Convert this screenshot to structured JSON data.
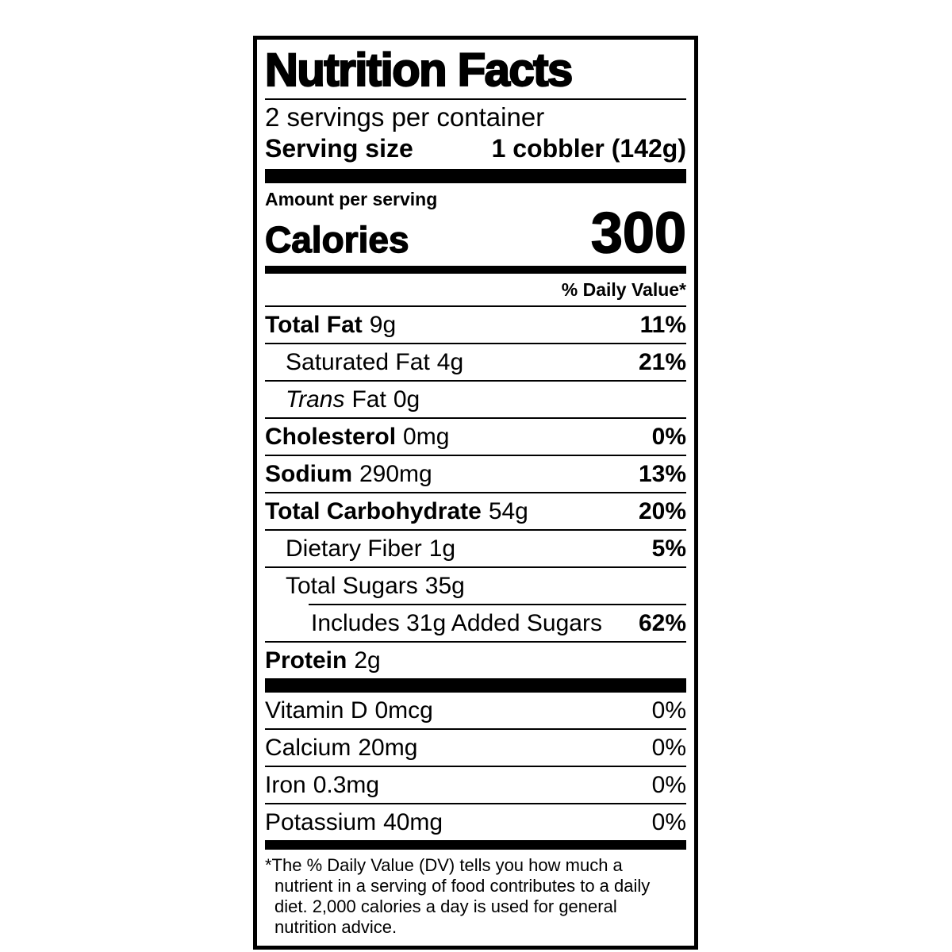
{
  "label": {
    "title": "Nutrition Facts",
    "servings_per_container": "2 servings per container",
    "serving_size": {
      "label": "Serving size",
      "value": "1 cobbler (142g)"
    },
    "amount_per_serving": "Amount per serving",
    "calories": {
      "label": "Calories",
      "value": "300"
    },
    "daily_value_header": "% Daily Value*",
    "nutrients": [
      {
        "name": "Total Fat",
        "amount": "9g",
        "dv": "11%"
      },
      {
        "name": "Saturated Fat",
        "amount": "4g",
        "dv": "21%"
      },
      {
        "name_italic": "Trans",
        "name": "Fat",
        "amount": "0g",
        "dv": ""
      },
      {
        "name": "Cholesterol",
        "amount": "0mg",
        "dv": "0%"
      },
      {
        "name": "Sodium",
        "amount": "290mg",
        "dv": "13%"
      },
      {
        "name": "Total Carbohydrate",
        "amount": "54g",
        "dv": "20%"
      },
      {
        "name": "Dietary Fiber",
        "amount": "1g",
        "dv": "5%"
      },
      {
        "name": "Total Sugars",
        "amount": "35g",
        "dv": ""
      },
      {
        "name": "Includes 31g Added Sugars",
        "amount": "",
        "dv": "62%"
      },
      {
        "name": "Protein",
        "amount": "2g",
        "dv": ""
      }
    ],
    "vitamins": [
      {
        "name": "Vitamin D",
        "amount": "0mcg",
        "dv": "0%"
      },
      {
        "name": "Calcium",
        "amount": "20mg",
        "dv": "0%"
      },
      {
        "name": "Iron",
        "amount": "0.3mg",
        "dv": "0%"
      },
      {
        "name": "Potassium",
        "amount": "40mg",
        "dv": "0%"
      }
    ],
    "footnote_lines": [
      "*The % Daily Value (DV) tells you how much a",
      "nutrient in a serving of food contributes to a daily",
      "diet. 2,000 calories a day is used for general",
      "nutrition advice."
    ],
    "colors": {
      "ink": "#000000",
      "background": "#ffffff"
    }
  }
}
